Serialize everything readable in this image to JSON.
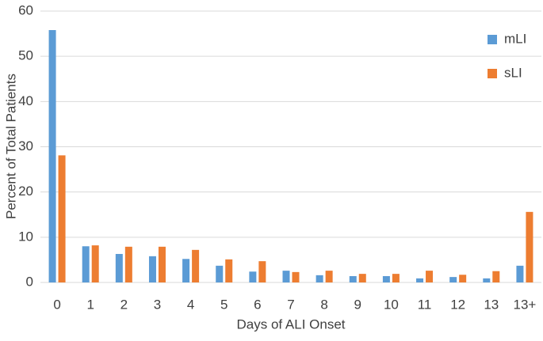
{
  "chart_data": {
    "type": "bar",
    "x_label": "Days of ALI Onset",
    "y_label": "Percent of Total Patients",
    "categories": [
      "0",
      "1",
      "2",
      "3",
      "4",
      "5",
      "6",
      "7",
      "8",
      "9",
      "10",
      "11",
      "12",
      "13",
      "13+"
    ],
    "series": [
      {
        "name": "mLI",
        "color": "#5b9bd5",
        "values": [
          55.8,
          8.0,
          6.3,
          5.8,
          5.2,
          3.7,
          2.4,
          2.6,
          1.6,
          1.4,
          1.4,
          0.9,
          1.2,
          0.9,
          3.7
        ]
      },
      {
        "name": "sLI",
        "color": "#ed7d31",
        "values": [
          28.1,
          8.2,
          7.9,
          7.9,
          7.2,
          5.1,
          4.7,
          2.3,
          2.6,
          1.9,
          1.9,
          2.6,
          1.7,
          2.5,
          15.6
        ]
      }
    ],
    "ylim": [
      0,
      60
    ],
    "yticks": [
      0,
      10,
      20,
      30,
      40,
      50,
      60
    ],
    "grid": true,
    "legend": "top-right"
  }
}
